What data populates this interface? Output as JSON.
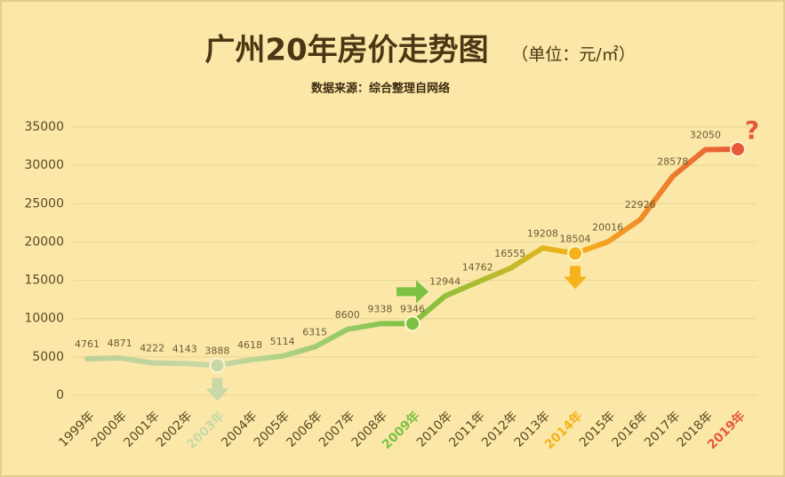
{
  "chart_data": {
    "type": "line",
    "title": "广州20年房价走势图",
    "subtitle": "（单位：元/㎡）",
    "source": "数据来源：综合整理自网络",
    "categories": [
      "1999年",
      "2000年",
      "2001年",
      "2002年",
      "2003年",
      "2004年",
      "2005年",
      "2006年",
      "2007年",
      "2008年",
      "2009年",
      "2010年",
      "2011年",
      "2012年",
      "2013年",
      "2014年",
      "2015年",
      "2016年",
      "2017年",
      "2018年",
      "2019年"
    ],
    "values": [
      4761,
      4871,
      4222,
      4143,
      3888,
      4618,
      5114,
      6315,
      8600,
      9338,
      9346,
      12944,
      14762,
      16555,
      19208,
      18504,
      20016,
      22926,
      28578,
      32050,
      32100
    ],
    "line_start_color": "#bcd197",
    "highlights": [
      {
        "index": 4,
        "color": "#c9d8a6",
        "arrow": "down"
      },
      {
        "index": 10,
        "color": "#7cc143",
        "arrow": "right"
      },
      {
        "index": 15,
        "color": "#f5b21a",
        "arrow": "down"
      },
      {
        "index": 20,
        "color": "#e8583a",
        "annotation": "?"
      }
    ],
    "ylim": [
      0,
      35000
    ],
    "yticks": [
      0,
      5000,
      10000,
      15000,
      20000,
      25000,
      30000,
      35000
    ],
    "grid": true
  }
}
